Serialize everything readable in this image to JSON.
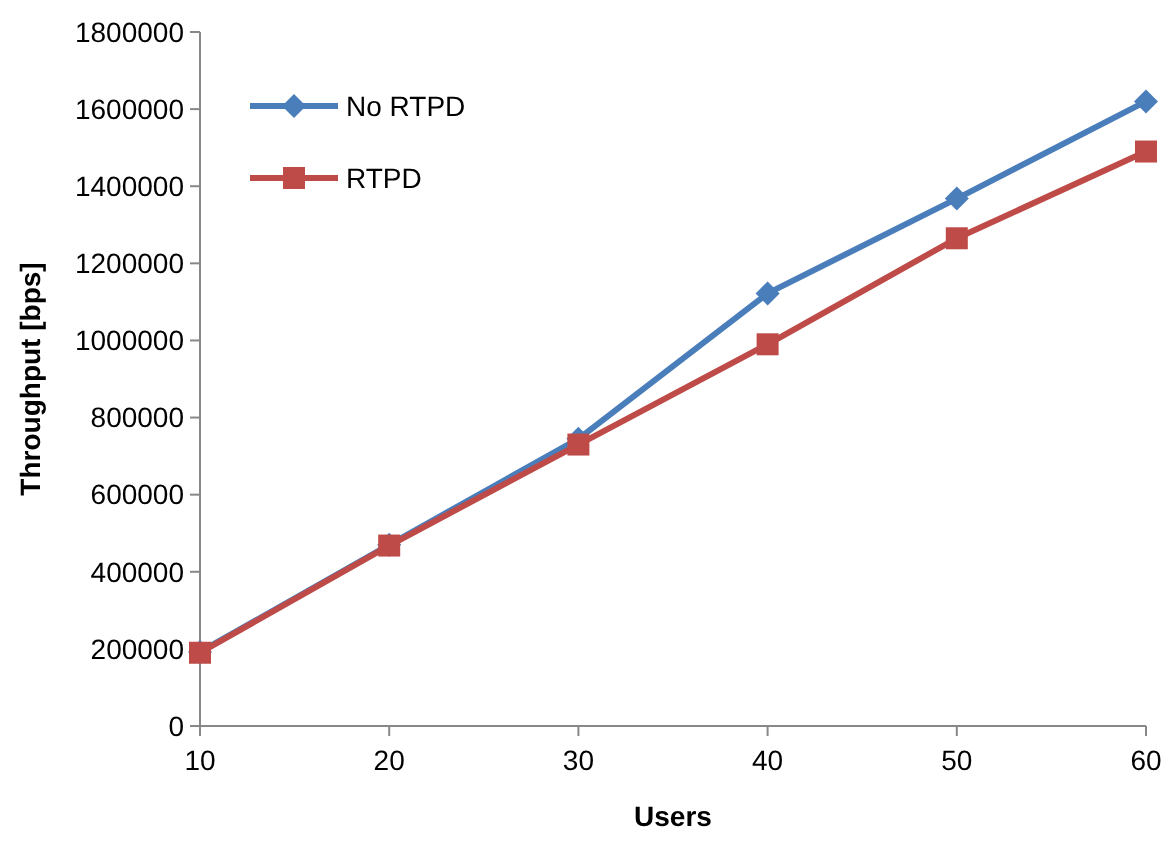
{
  "chart_data": {
    "type": "line",
    "xlabel": "Users",
    "ylabel": "Throughput [bps]",
    "x": [
      10,
      20,
      30,
      40,
      50,
      60
    ],
    "xlim": [
      10,
      60
    ],
    "xticks": [
      10,
      20,
      30,
      40,
      50,
      60
    ],
    "ylim": [
      0,
      1800000
    ],
    "yticks": [
      0,
      200000,
      400000,
      600000,
      800000,
      1000000,
      1200000,
      1400000,
      1600000,
      1800000
    ],
    "grid": false,
    "legend": "top left",
    "series": [
      {
        "name": "No RTPD",
        "color": "#4a7ebb",
        "marker": "diamond",
        "values": [
          192000,
          470000,
          745000,
          1122000,
          1368000,
          1620000
        ]
      },
      {
        "name": "RTPD",
        "color": "#be4b48",
        "marker": "square",
        "values": [
          190000,
          468000,
          730000,
          990000,
          1265000,
          1490000
        ]
      }
    ]
  }
}
